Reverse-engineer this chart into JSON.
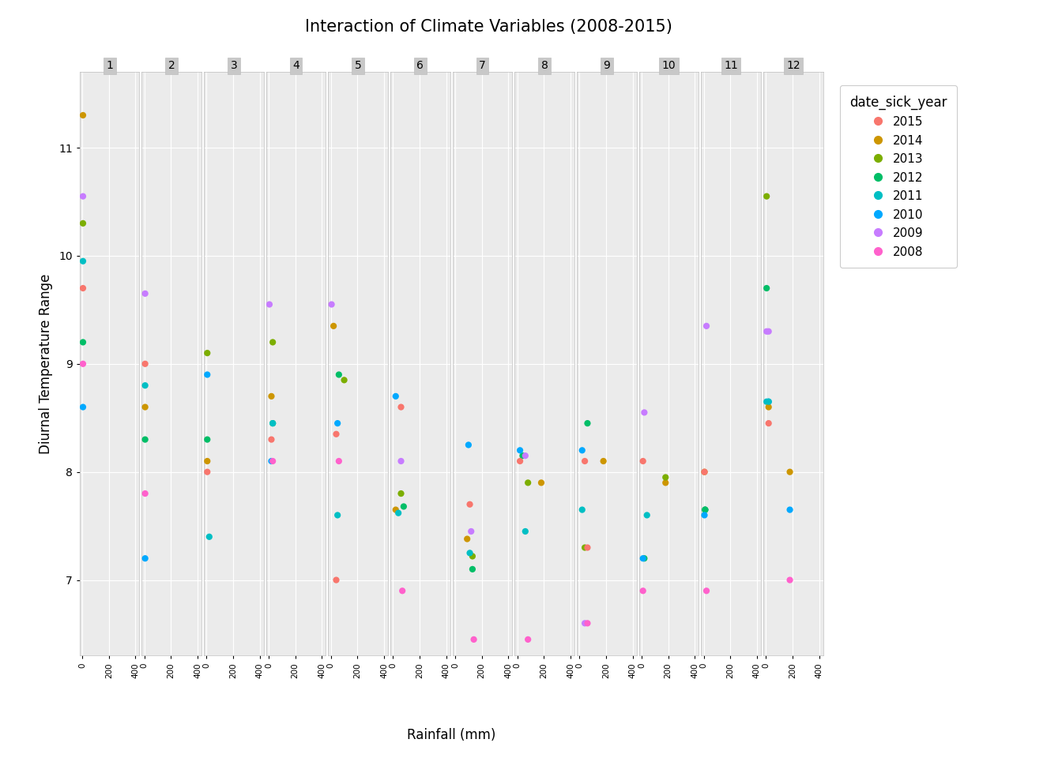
{
  "title": "Interaction of Climate Variables (2008-2015)",
  "xlabel": "Rainfall (mm)",
  "ylabel": "Diurnal Temperature Range",
  "legend_title": "date_sick_year",
  "years": [
    2015,
    2014,
    2013,
    2012,
    2011,
    2010,
    2009,
    2008
  ],
  "year_colors": {
    "2015": "#F8766D",
    "2014": "#CD9600",
    "2013": "#7CAE00",
    "2012": "#00BE67",
    "2011": "#00BFC4",
    "2010": "#00A9FF",
    "2009": "#C77CFF",
    "2008": "#FF61CC"
  },
  "points": [
    {
      "month": 1,
      "year": 2014,
      "rainfall": 5,
      "dtr": 11.3
    },
    {
      "month": 1,
      "year": 2009,
      "rainfall": 5,
      "dtr": 10.55
    },
    {
      "month": 1,
      "year": 2013,
      "rainfall": 5,
      "dtr": 10.3
    },
    {
      "month": 1,
      "year": 2011,
      "rainfall": 5,
      "dtr": 9.95
    },
    {
      "month": 1,
      "year": 2015,
      "rainfall": 5,
      "dtr": 9.7
    },
    {
      "month": 1,
      "year": 2012,
      "rainfall": 5,
      "dtr": 9.2
    },
    {
      "month": 1,
      "year": 2008,
      "rainfall": 5,
      "dtr": 9.0
    },
    {
      "month": 1,
      "year": 2010,
      "rainfall": 5,
      "dtr": 8.6
    },
    {
      "month": 2,
      "year": 2009,
      "rainfall": 5,
      "dtr": 9.65
    },
    {
      "month": 2,
      "year": 2015,
      "rainfall": 5,
      "dtr": 9.0
    },
    {
      "month": 2,
      "year": 2011,
      "rainfall": 5,
      "dtr": 8.8
    },
    {
      "month": 2,
      "year": 2014,
      "rainfall": 5,
      "dtr": 8.6
    },
    {
      "month": 2,
      "year": 2012,
      "rainfall": 5,
      "dtr": 8.3
    },
    {
      "month": 2,
      "year": 2008,
      "rainfall": 5,
      "dtr": 7.8
    },
    {
      "month": 2,
      "year": 2010,
      "rainfall": 5,
      "dtr": 7.2
    },
    {
      "month": 3,
      "year": 2013,
      "rainfall": 5,
      "dtr": 9.1
    },
    {
      "month": 3,
      "year": 2010,
      "rainfall": 5,
      "dtr": 8.9
    },
    {
      "month": 3,
      "year": 2012,
      "rainfall": 5,
      "dtr": 8.3
    },
    {
      "month": 3,
      "year": 2014,
      "rainfall": 5,
      "dtr": 8.1
    },
    {
      "month": 3,
      "year": 2015,
      "rainfall": 5,
      "dtr": 8.0
    },
    {
      "month": 3,
      "year": 2011,
      "rainfall": 20,
      "dtr": 7.4
    },
    {
      "month": 4,
      "year": 2009,
      "rainfall": 5,
      "dtr": 9.55
    },
    {
      "month": 4,
      "year": 2013,
      "rainfall": 30,
      "dtr": 9.2
    },
    {
      "month": 4,
      "year": 2014,
      "rainfall": 20,
      "dtr": 8.7
    },
    {
      "month": 4,
      "year": 2015,
      "rainfall": 20,
      "dtr": 8.3
    },
    {
      "month": 4,
      "year": 2012,
      "rainfall": 30,
      "dtr": 8.45
    },
    {
      "month": 4,
      "year": 2011,
      "rainfall": 30,
      "dtr": 8.45
    },
    {
      "month": 4,
      "year": 2010,
      "rainfall": 20,
      "dtr": 8.1
    },
    {
      "month": 4,
      "year": 2008,
      "rainfall": 30,
      "dtr": 8.1
    },
    {
      "month": 5,
      "year": 2009,
      "rainfall": 5,
      "dtr": 9.55
    },
    {
      "month": 5,
      "year": 2014,
      "rainfall": 20,
      "dtr": 9.35
    },
    {
      "month": 5,
      "year": 2013,
      "rainfall": 100,
      "dtr": 8.85
    },
    {
      "month": 5,
      "year": 2012,
      "rainfall": 60,
      "dtr": 8.9
    },
    {
      "month": 5,
      "year": 2010,
      "rainfall": 50,
      "dtr": 8.45
    },
    {
      "month": 5,
      "year": 2015,
      "rainfall": 40,
      "dtr": 8.35
    },
    {
      "month": 5,
      "year": 2008,
      "rainfall": 60,
      "dtr": 8.1
    },
    {
      "month": 5,
      "year": 2011,
      "rainfall": 50,
      "dtr": 7.6
    },
    {
      "month": 5,
      "year": 2015,
      "rainfall": 40,
      "dtr": 7.0
    },
    {
      "month": 6,
      "year": 2010,
      "rainfall": 20,
      "dtr": 8.7
    },
    {
      "month": 6,
      "year": 2015,
      "rainfall": 60,
      "dtr": 8.6
    },
    {
      "month": 6,
      "year": 2009,
      "rainfall": 60,
      "dtr": 8.1
    },
    {
      "month": 6,
      "year": 2013,
      "rainfall": 60,
      "dtr": 7.8
    },
    {
      "month": 6,
      "year": 2012,
      "rainfall": 80,
      "dtr": 7.68
    },
    {
      "month": 6,
      "year": 2014,
      "rainfall": 20,
      "dtr": 7.65
    },
    {
      "month": 6,
      "year": 2011,
      "rainfall": 40,
      "dtr": 7.62
    },
    {
      "month": 6,
      "year": 2008,
      "rainfall": 70,
      "dtr": 6.9
    },
    {
      "month": 7,
      "year": 2010,
      "rainfall": 100,
      "dtr": 8.25
    },
    {
      "month": 7,
      "year": 2015,
      "rainfall": 110,
      "dtr": 7.7
    },
    {
      "month": 7,
      "year": 2009,
      "rainfall": 120,
      "dtr": 7.45
    },
    {
      "month": 7,
      "year": 2014,
      "rainfall": 90,
      "dtr": 7.38
    },
    {
      "month": 7,
      "year": 2013,
      "rainfall": 130,
      "dtr": 7.22
    },
    {
      "month": 7,
      "year": 2011,
      "rainfall": 110,
      "dtr": 7.25
    },
    {
      "month": 7,
      "year": 2012,
      "rainfall": 130,
      "dtr": 7.1
    },
    {
      "month": 7,
      "year": 2008,
      "rainfall": 140,
      "dtr": 6.45
    },
    {
      "month": 8,
      "year": 2012,
      "rainfall": 40,
      "dtr": 8.15
    },
    {
      "month": 8,
      "year": 2009,
      "rainfall": 60,
      "dtr": 8.15
    },
    {
      "month": 8,
      "year": 2010,
      "rainfall": 20,
      "dtr": 8.2
    },
    {
      "month": 8,
      "year": 2015,
      "rainfall": 20,
      "dtr": 8.1
    },
    {
      "month": 8,
      "year": 2013,
      "rainfall": 80,
      "dtr": 7.9
    },
    {
      "month": 8,
      "year": 2014,
      "rainfall": 180,
      "dtr": 7.9
    },
    {
      "month": 8,
      "year": 2011,
      "rainfall": 60,
      "dtr": 7.45
    },
    {
      "month": 8,
      "year": 2008,
      "rainfall": 80,
      "dtr": 6.45
    },
    {
      "month": 9,
      "year": 2012,
      "rainfall": 60,
      "dtr": 8.45
    },
    {
      "month": 9,
      "year": 2010,
      "rainfall": 20,
      "dtr": 8.2
    },
    {
      "month": 9,
      "year": 2014,
      "rainfall": 180,
      "dtr": 8.1
    },
    {
      "month": 9,
      "year": 2015,
      "rainfall": 40,
      "dtr": 8.1
    },
    {
      "month": 9,
      "year": 2011,
      "rainfall": 20,
      "dtr": 7.65
    },
    {
      "month": 9,
      "year": 2013,
      "rainfall": 40,
      "dtr": 7.3
    },
    {
      "month": 9,
      "year": 2015,
      "rainfall": 60,
      "dtr": 7.3
    },
    {
      "month": 9,
      "year": 2009,
      "rainfall": 40,
      "dtr": 6.6
    },
    {
      "month": 9,
      "year": 2008,
      "rainfall": 60,
      "dtr": 6.6
    },
    {
      "month": 10,
      "year": 2009,
      "rainfall": 20,
      "dtr": 8.55
    },
    {
      "month": 10,
      "year": 2015,
      "rainfall": 10,
      "dtr": 8.1
    },
    {
      "month": 10,
      "year": 2014,
      "rainfall": 180,
      "dtr": 7.9
    },
    {
      "month": 10,
      "year": 2013,
      "rainfall": 180,
      "dtr": 7.95
    },
    {
      "month": 10,
      "year": 2011,
      "rainfall": 40,
      "dtr": 7.6
    },
    {
      "month": 10,
      "year": 2012,
      "rainfall": 20,
      "dtr": 7.2
    },
    {
      "month": 10,
      "year": 2010,
      "rainfall": 10,
      "dtr": 7.2
    },
    {
      "month": 10,
      "year": 2008,
      "rainfall": 10,
      "dtr": 6.9
    },
    {
      "month": 11,
      "year": 2009,
      "rainfall": 20,
      "dtr": 9.35
    },
    {
      "month": 11,
      "year": 2014,
      "rainfall": 5,
      "dtr": 8.0
    },
    {
      "month": 11,
      "year": 2015,
      "rainfall": 5,
      "dtr": 8.0
    },
    {
      "month": 11,
      "year": 2013,
      "rainfall": 10,
      "dtr": 7.65
    },
    {
      "month": 11,
      "year": 2011,
      "rainfall": 10,
      "dtr": 7.65
    },
    {
      "month": 11,
      "year": 2012,
      "rainfall": 10,
      "dtr": 7.65
    },
    {
      "month": 11,
      "year": 2010,
      "rainfall": 5,
      "dtr": 7.6
    },
    {
      "month": 11,
      "year": 2008,
      "rainfall": 20,
      "dtr": 6.9
    },
    {
      "month": 12,
      "year": 2013,
      "rainfall": 5,
      "dtr": 10.55
    },
    {
      "month": 12,
      "year": 2012,
      "rainfall": 5,
      "dtr": 9.7
    },
    {
      "month": 12,
      "year": 2009,
      "rainfall": 5,
      "dtr": 9.3
    },
    {
      "month": 12,
      "year": 2011,
      "rainfall": 5,
      "dtr": 8.65
    },
    {
      "month": 12,
      "year": 2010,
      "rainfall": 20,
      "dtr": 8.65
    },
    {
      "month": 12,
      "year": 2014,
      "rainfall": 20,
      "dtr": 8.6
    },
    {
      "month": 12,
      "year": 2015,
      "rainfall": 20,
      "dtr": 8.45
    },
    {
      "month": 12,
      "year": 2009,
      "rainfall": 20,
      "dtr": 9.3
    },
    {
      "month": 12,
      "year": 2011,
      "rainfall": 20,
      "dtr": 8.65
    },
    {
      "month": 12,
      "year": 2014,
      "rainfall": 180,
      "dtr": 8.0
    },
    {
      "month": 12,
      "year": 2010,
      "rainfall": 180,
      "dtr": 7.65
    },
    {
      "month": 12,
      "year": 2008,
      "rainfall": 180,
      "dtr": 7.0
    }
  ],
  "ylim": [
    6.3,
    11.7
  ],
  "xlim_per_panel": [
    -20,
    430
  ],
  "xticks": [
    0,
    200,
    400
  ],
  "yticks": [
    7,
    8,
    9,
    10,
    11
  ],
  "bg_color": "#EBEBEB",
  "grid_color": "#FFFFFF",
  "panel_label_bg": "#C8C8C8",
  "panel_sep_color": "#BEBEBE"
}
